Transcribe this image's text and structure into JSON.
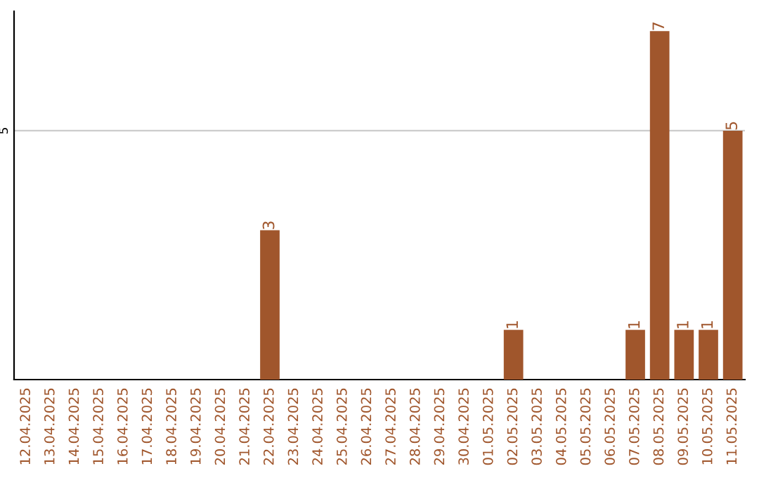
{
  "chart_data": {
    "type": "bar",
    "categories": [
      "12.04.2025",
      "13.04.2025",
      "14.04.2025",
      "15.04.2025",
      "16.04.2025",
      "17.04.2025",
      "18.04.2025",
      "19.04.2025",
      "20.04.2025",
      "21.04.2025",
      "22.04.2025",
      "23.04.2025",
      "24.04.2025",
      "25.04.2025",
      "26.04.2025",
      "27.04.2025",
      "28.04.2025",
      "29.04.2025",
      "30.04.2025",
      "01.05.2025",
      "02.05.2025",
      "03.05.2025",
      "04.05.2025",
      "05.05.2025",
      "06.05.2025",
      "07.05.2025",
      "08.05.2025",
      "09.05.2025",
      "10.05.2025",
      "11.05.2025"
    ],
    "values": [
      0,
      0,
      0,
      0,
      0,
      0,
      0,
      0,
      0,
      0,
      3,
      0,
      0,
      0,
      0,
      0,
      0,
      0,
      0,
      0,
      1,
      0,
      0,
      0,
      0,
      1,
      7,
      1,
      1,
      5
    ],
    "value_labels": [
      null,
      null,
      null,
      null,
      null,
      null,
      null,
      null,
      null,
      null,
      "3",
      null,
      null,
      null,
      null,
      null,
      null,
      null,
      null,
      null,
      "1",
      null,
      null,
      null,
      null,
      "1",
      "7",
      "1",
      "1",
      "5"
    ],
    "color": "#a0562c",
    "ylim": [
      0,
      7.4
    ],
    "yticks": [
      5
    ],
    "grid": "y",
    "legend": false
  }
}
